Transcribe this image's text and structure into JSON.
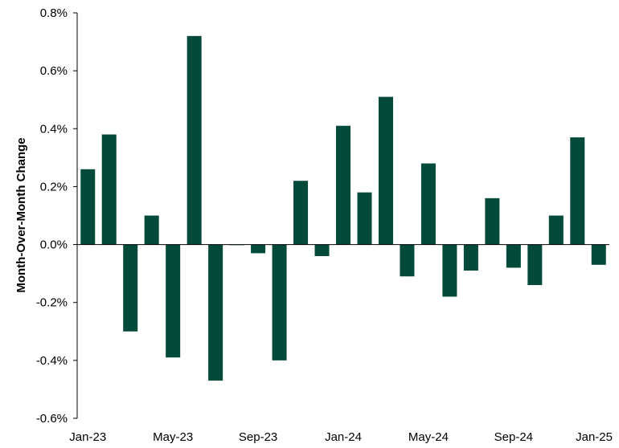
{
  "chart_data": {
    "type": "bar",
    "title": "",
    "xlabel": "",
    "ylabel": "Month-Over-Month Change",
    "ylim": [
      -0.6,
      0.8
    ],
    "y_ticks": [
      -0.6,
      -0.4,
      -0.2,
      0.0,
      0.2,
      0.4,
      0.6,
      0.8
    ],
    "y_tick_labels": [
      "-0.6%",
      "-0.4%",
      "-0.2%",
      "0.0%",
      "0.2%",
      "0.4%",
      "0.6%",
      "0.8%"
    ],
    "categories": [
      "Jan-23",
      "Feb-23",
      "Mar-23",
      "Apr-23",
      "May-23",
      "Jun-23",
      "Jul-23",
      "Aug-23",
      "Sep-23",
      "Oct-23",
      "Nov-23",
      "Dec-23",
      "Jan-24",
      "Feb-24",
      "Mar-24",
      "Apr-24",
      "May-24",
      "Jun-24",
      "Jul-24",
      "Aug-24",
      "Sep-24",
      "Oct-24",
      "Nov-24",
      "Dec-24",
      "Jan-25"
    ],
    "x_tick_labels": [
      "Jan-23",
      "May-23",
      "Sep-23",
      "Jan-24",
      "May-24",
      "Sep-24",
      "Jan-25"
    ],
    "values": [
      0.26,
      0.38,
      -0.3,
      0.1,
      -0.39,
      0.72,
      -0.47,
      0.0,
      -0.03,
      -0.4,
      0.22,
      -0.04,
      0.41,
      0.18,
      0.51,
      -0.11,
      0.28,
      -0.18,
      -0.09,
      0.16,
      -0.08,
      -0.14,
      0.1,
      0.37,
      -0.07
    ],
    "bar_color": "#034a3a",
    "grid": false,
    "legend": "none"
  }
}
